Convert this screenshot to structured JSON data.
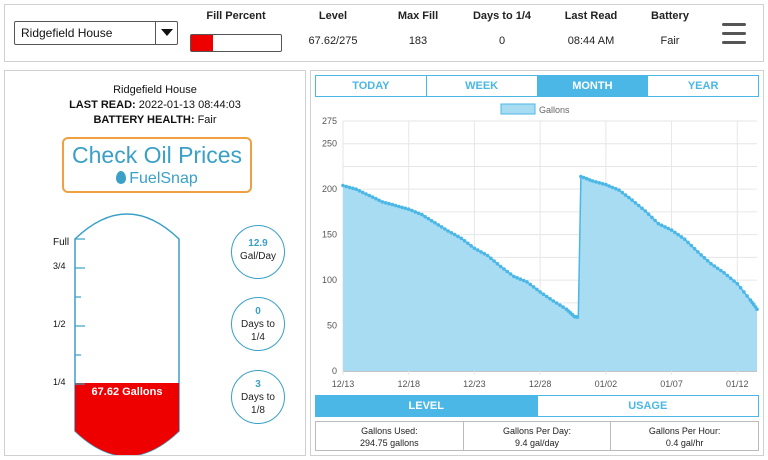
{
  "topbar": {
    "tank_select": {
      "value": "Ridgefield House"
    },
    "columns": [
      {
        "key": "fill",
        "header": "Fill Percent"
      },
      {
        "key": "level",
        "header": "Level",
        "value": "67.62/275"
      },
      {
        "key": "maxfill",
        "header": "Max Fill",
        "value": "183"
      },
      {
        "key": "days",
        "header": "Days to 1/4",
        "value": "0"
      },
      {
        "key": "lastread",
        "header": "Last Read",
        "value": "08:44 AM"
      },
      {
        "key": "battery",
        "header": "Battery",
        "value": "Fair"
      }
    ],
    "fill_fraction": 0.2459,
    "fill_color": "#ee0000",
    "menu_icon": "hamburger-icon"
  },
  "left": {
    "name": "Ridgefield House",
    "last_read_label": "LAST READ:",
    "last_read_value": "2022-01-13 08:44:03",
    "battery_label": "BATTERY HEALTH:",
    "battery_value": "Fair",
    "oil_button": {
      "title": "Check Oil Prices",
      "brand": "FuelSnap"
    },
    "tank": {
      "labels": [
        "Full",
        "3/4",
        "1/2",
        "1/4"
      ],
      "gallons_label": "67.62 Gallons",
      "fill_fraction": 0.2459,
      "fill_color": "#ee0000"
    },
    "circles": [
      {
        "num": "12.9",
        "lines": [
          "Gal/Day"
        ]
      },
      {
        "num": "0",
        "lines": [
          "Days to",
          "1/4"
        ]
      },
      {
        "num": "3",
        "lines": [
          "Days to",
          "1/8"
        ]
      }
    ]
  },
  "right": {
    "tabs": [
      "TODAY",
      "WEEK",
      "MONTH",
      "YEAR"
    ],
    "active_tab": "MONTH",
    "view_tabs": [
      "LEVEL",
      "USAGE"
    ],
    "active_view": "LEVEL",
    "stats": [
      {
        "label": "Gallons Used:",
        "value": "294.75 gallons"
      },
      {
        "label": "Gallons Per Day:",
        "value": "9.4 gal/day"
      },
      {
        "label": "Gallons Per Hour:",
        "value": "0.4 gal/hr"
      }
    ]
  },
  "chart_data": {
    "type": "area",
    "series": [
      {
        "name": "Gallons",
        "color": "#4ab7e6",
        "fill": "#a8dcf2"
      }
    ],
    "x_tick_labels": [
      "12/13",
      "12/18",
      "12/23",
      "12/28",
      "01/02",
      "01/07",
      "01/12"
    ],
    "y_ticks": [
      0,
      25,
      50,
      75,
      100,
      125,
      150,
      175,
      200,
      225,
      250,
      275
    ],
    "y_tick_labels": [
      "0",
      "",
      "50",
      "",
      "100",
      "",
      "150",
      "",
      "200",
      "",
      "250",
      "275"
    ],
    "ylim": [
      0,
      275
    ],
    "xlim_days": [
      0,
      31.5
    ],
    "x_tick_days": [
      0,
      5,
      10,
      15,
      20,
      25,
      30
    ],
    "grid": true,
    "legend_position": "top",
    "points": [
      [
        0,
        204
      ],
      [
        1,
        200
      ],
      [
        2,
        193
      ],
      [
        3,
        186
      ],
      [
        4,
        182
      ],
      [
        5,
        178
      ],
      [
        6,
        172
      ],
      [
        7,
        163
      ],
      [
        8,
        154
      ],
      [
        9,
        146
      ],
      [
        10,
        135
      ],
      [
        11,
        127
      ],
      [
        12,
        115
      ],
      [
        13,
        104
      ],
      [
        14,
        98
      ],
      [
        15,
        87
      ],
      [
        16,
        77
      ],
      [
        17,
        68
      ],
      [
        17.6,
        60
      ],
      [
        17.9,
        59
      ],
      [
        18.1,
        214
      ],
      [
        19,
        209
      ],
      [
        20,
        205
      ],
      [
        21,
        199
      ],
      [
        22,
        188
      ],
      [
        23,
        176
      ],
      [
        24,
        162
      ],
      [
        25,
        155
      ],
      [
        26,
        145
      ],
      [
        27,
        131
      ],
      [
        28,
        118
      ],
      [
        29,
        108
      ],
      [
        30,
        96
      ],
      [
        31,
        78
      ],
      [
        31.5,
        68
      ]
    ]
  }
}
